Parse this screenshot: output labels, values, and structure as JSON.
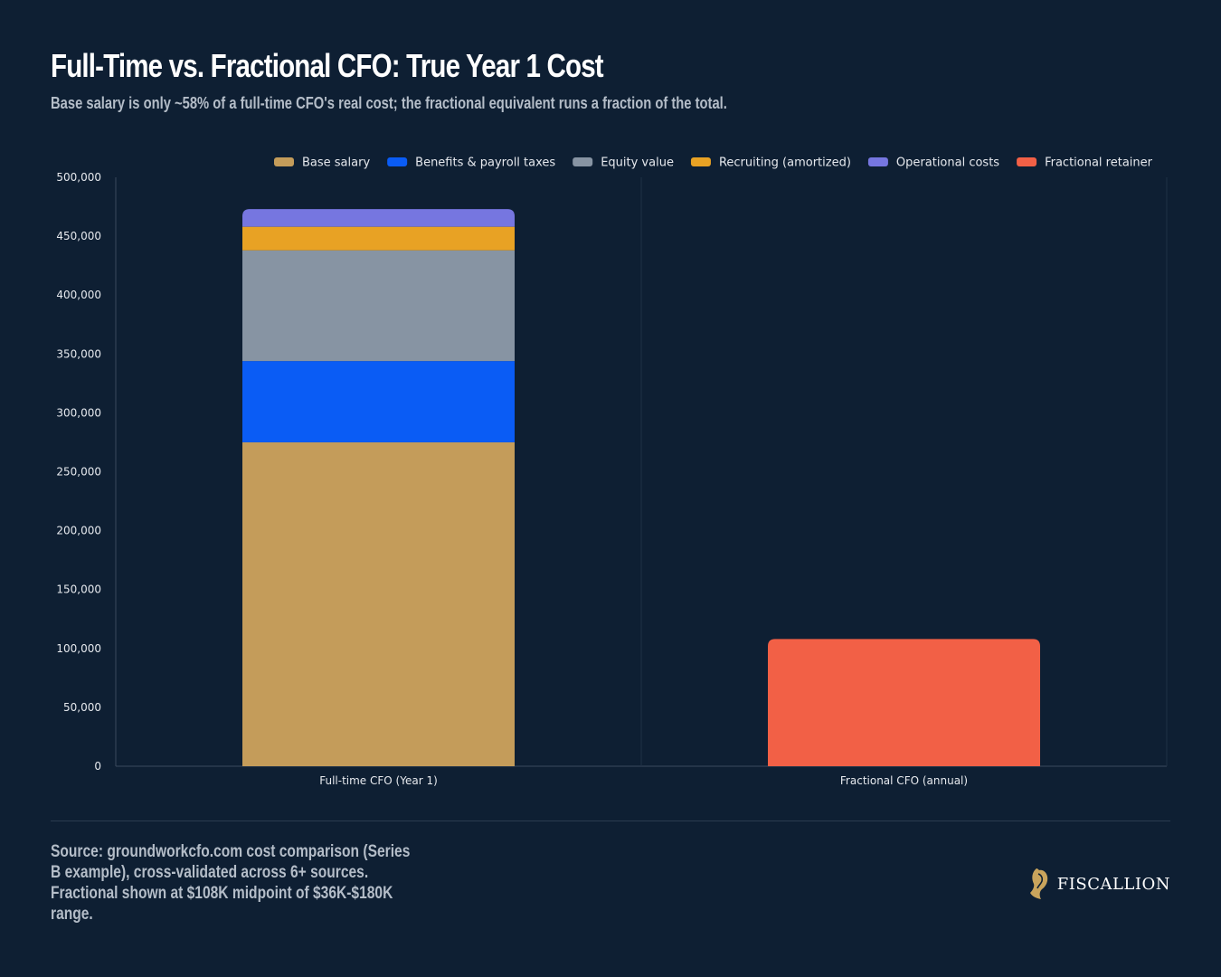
{
  "title": "Full-Time vs. Fractional CFO: True Year 1 Cost",
  "subtitle": "Base salary is only ~58% of a full-time CFO's real cost; the fractional equivalent runs a fraction of the total.",
  "source": "Source: groundworkcfo.com cost comparison (Series B example), cross-validated across 6+ sources. Fractional shown at $108K midpoint of $36K-$180K range.",
  "brand": {
    "name": "FISCALLION",
    "icon": "horse-head-icon",
    "color": "#c9a45c"
  },
  "chart_data": {
    "type": "bar",
    "stacked": true,
    "categories": [
      "Full-time CFO (Year 1)",
      "Fractional CFO (annual)"
    ],
    "series": [
      {
        "name": "Base salary",
        "color": "#c49c5a",
        "values": [
          275000,
          0
        ]
      },
      {
        "name": "Benefits & payroll taxes",
        "color": "#0a5cf5",
        "values": [
          69000,
          0
        ]
      },
      {
        "name": "Equity value",
        "color": "#8794a3",
        "values": [
          94000,
          0
        ]
      },
      {
        "name": "Recruiting (amortized)",
        "color": "#e8a224",
        "values": [
          20000,
          0
        ]
      },
      {
        "name": "Operational costs",
        "color": "#7676e0",
        "values": [
          15000,
          0
        ]
      },
      {
        "name": "Fractional retainer",
        "color": "#f26046",
        "values": [
          0,
          108000
        ]
      }
    ],
    "yticks": [
      "0",
      "50,000",
      "100,000",
      "150,000",
      "200,000",
      "250,000",
      "300,000",
      "350,000",
      "400,000",
      "450,000",
      "500,000"
    ],
    "ylim": [
      0,
      500000
    ],
    "grid": "vertical category separators",
    "legend_position": "top-right"
  }
}
